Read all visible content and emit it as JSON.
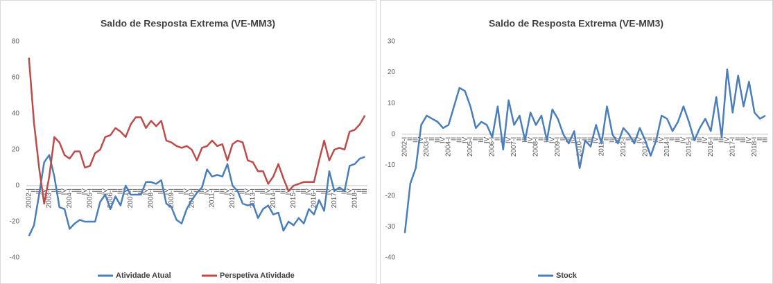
{
  "chart_data": [
    {
      "type": "line",
      "title": "Saldo de Resposta Extrema (VE-MM3)",
      "categories": [
        "2002-I",
        "II",
        "III",
        "IV",
        "2003-I",
        "II",
        "III",
        "IV",
        "2004-I",
        "II",
        "III",
        "IV",
        "2005-I",
        "II",
        "III",
        "IV",
        "2006-I",
        "II",
        "III",
        "IV",
        "2007-I",
        "II",
        "III",
        "IV",
        "2008-I",
        "II",
        "III",
        "IV",
        "2009-I",
        "II",
        "III",
        "IV",
        "2010-I",
        "II",
        "III",
        "IV",
        "2011-I",
        "II",
        "III",
        "IV",
        "2012-I",
        "II",
        "III",
        "IV",
        "2013-I",
        "II",
        "III",
        "IV",
        "2014-I",
        "II",
        "III",
        "IV",
        "2015-I",
        "II",
        "III",
        "IV",
        "2016-I",
        "II",
        "III",
        "IV",
        "2017-I",
        "II",
        "III",
        "IV",
        "2018-I",
        "II",
        "III"
      ],
      "series": [
        {
          "name": "Atividade Atual",
          "color": "#4a7ebb",
          "values": [
            -28,
            -22,
            -5,
            13,
            17,
            5,
            -12,
            -13,
            -24,
            -21,
            -19,
            -20,
            -20,
            -20,
            -9,
            -5,
            -13,
            -6,
            -11,
            0,
            -5,
            -5,
            -5,
            2,
            2,
            1,
            3,
            -10,
            -12,
            -19,
            -21,
            -13,
            -8,
            -4,
            -1,
            9,
            5,
            6,
            5,
            12,
            0,
            -3,
            -10,
            -11,
            -10,
            -18,
            -13,
            -11,
            -16,
            -15,
            -25,
            -20,
            -22,
            -18,
            -21,
            -13,
            -16,
            -8,
            -14,
            8,
            -3,
            -1,
            -3,
            11,
            12,
            15,
            16
          ]
        },
        {
          "name": "Perspetiva Atividade",
          "color": "#be4b48",
          "values": [
            71,
            35,
            10,
            -10,
            5,
            27,
            24,
            17,
            15,
            19,
            19,
            10,
            11,
            18,
            20,
            27,
            28,
            32,
            30,
            27,
            34,
            38,
            38,
            32,
            36,
            33,
            36,
            25,
            24,
            22,
            21,
            22,
            20,
            14,
            21,
            22,
            25,
            22,
            23,
            14,
            23,
            25,
            24,
            14,
            13,
            8,
            8,
            1,
            5,
            12,
            4,
            -3,
            0,
            1,
            2,
            2,
            2,
            14,
            25,
            14,
            20,
            21,
            20,
            30,
            31,
            34,
            39
          ]
        }
      ],
      "ylim": [
        -40,
        80
      ],
      "yticks": [
        -40,
        -20,
        0,
        20,
        40,
        60,
        80
      ],
      "grid": false,
      "legend": "bottom"
    },
    {
      "type": "line",
      "title": "Saldo de Resposta Extrema (VE-MM3)",
      "categories": [
        "2002-I",
        "II",
        "III",
        "IV",
        "2003-I",
        "II",
        "III",
        "IV",
        "2004-I",
        "II",
        "III",
        "IV",
        "2005-I",
        "II",
        "III",
        "IV",
        "2006-I",
        "II",
        "III",
        "IV",
        "2007-I",
        "II",
        "III",
        "IV",
        "2008-I",
        "II",
        "III",
        "IV",
        "2009-I",
        "II",
        "III",
        "IV",
        "2010-I",
        "II",
        "III",
        "IV",
        "2011-I",
        "II",
        "III",
        "IV",
        "2012-I",
        "II",
        "III",
        "IV",
        "2013-I",
        "II",
        "III",
        "IV",
        "2014-I",
        "II",
        "III",
        "IV",
        "2015-I",
        "II",
        "III",
        "IV",
        "2016-I",
        "II",
        "III",
        "IV",
        "2017-I",
        "II",
        "III",
        "IV",
        "2018-I",
        "II",
        "III"
      ],
      "series": [
        {
          "name": "Stock",
          "color": "#4a7ebb",
          "values": [
            -32,
            -16,
            -11,
            3,
            6,
            5,
            4,
            2,
            3,
            9,
            15,
            14,
            9,
            2,
            4,
            3,
            -1,
            9,
            -5,
            11,
            3,
            6,
            -2,
            7,
            3,
            6,
            -2,
            8,
            5,
            0,
            -3,
            1,
            -11,
            -2,
            -4,
            3,
            -3,
            9,
            0,
            -3,
            2,
            0,
            -3,
            2,
            -2,
            -7,
            -2,
            6,
            5,
            1,
            4,
            9,
            4,
            -2,
            2,
            5,
            1,
            12,
            -1,
            21,
            7,
            19,
            9,
            17,
            7,
            5,
            6
          ]
        }
      ],
      "ylim": [
        -40,
        30
      ],
      "yticks": [
        -40,
        -30,
        -20,
        -10,
        0,
        10,
        20,
        30
      ],
      "grid": false,
      "legend": "bottom"
    }
  ]
}
